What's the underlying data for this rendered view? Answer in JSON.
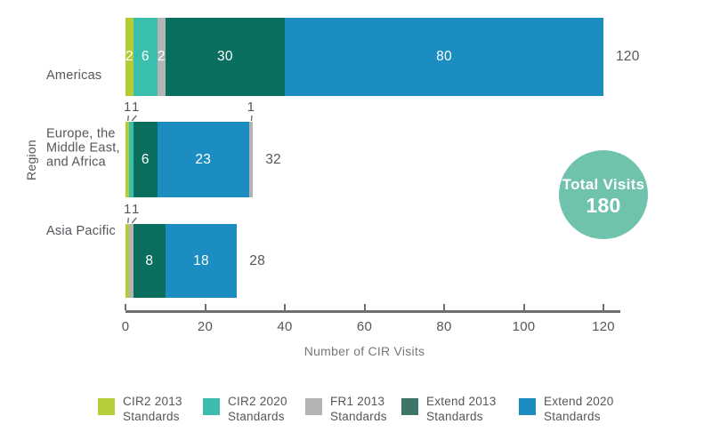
{
  "chart_data": {
    "type": "bar",
    "orientation": "horizontal-stacked",
    "title": "",
    "xlabel": "Number of CIR Visits",
    "ylabel": "Region",
    "xlim": [
      0,
      120
    ],
    "xticks": [
      0,
      20,
      40,
      60,
      80,
      100,
      120
    ],
    "grid": false,
    "legend_position": "bottom",
    "categories": [
      "Americas",
      "Europe, the Middle East, and Africa",
      "Asia Pacific"
    ],
    "totals": [
      120,
      32,
      28
    ],
    "series": [
      {
        "name": "CIR2 2013 Standards",
        "color": "#B2CC35",
        "values": [
          2,
          1,
          1
        ]
      },
      {
        "name": "CIR2 2020 Standards",
        "color": "#39BFAC",
        "values": [
          6,
          1,
          0
        ]
      },
      {
        "name": "FR1 2013 Standards",
        "color": "#B3B3B3",
        "values": [
          2,
          1,
          1
        ]
      },
      {
        "name": "Extend 2013 Standards",
        "color": "#0A6E5F",
        "values": [
          30,
          6,
          8
        ]
      },
      {
        "name": "Extend 2020 Standards",
        "color": "#1C8DC1",
        "values": [
          80,
          23,
          18
        ]
      }
    ],
    "rows": [
      {
        "region_lines": [
          "Americas"
        ],
        "total": 120,
        "segments": [
          {
            "series": "CIR2 2013 Standards",
            "value": 2,
            "color": "#B2CC35"
          },
          {
            "series": "CIR2 2020 Standards",
            "value": 6,
            "color": "#39BFAC"
          },
          {
            "series": "FR1 2013 Standards",
            "value": 2,
            "color": "#B3B3B3"
          },
          {
            "series": "Extend 2013 Standards",
            "value": 30,
            "color": "#0A6E5F"
          },
          {
            "series": "Extend 2020 Standards",
            "value": 80,
            "color": "#1C8DC1"
          }
        ]
      },
      {
        "region_lines": [
          "Europe, the",
          "Middle East,",
          "and Africa"
        ],
        "total": 32,
        "segments": [
          {
            "series": "CIR2 2013 Standards",
            "value": 1,
            "color": "#B2CC35"
          },
          {
            "series": "CIR2 2020 Standards",
            "value": 1,
            "color": "#39BFAC"
          },
          {
            "series": "Extend 2013 Standards",
            "value": 6,
            "color": "#0A6E5F"
          },
          {
            "series": "Extend 2020 Standards",
            "value": 23,
            "color": "#1C8DC1"
          },
          {
            "series": "FR1 2013 Standards",
            "value": 1,
            "color": "#B3B3B3"
          }
        ]
      },
      {
        "region_lines": [
          "Asia Pacific"
        ],
        "total": 28,
        "segments": [
          {
            "series": "CIR2 2013 Standards",
            "value": 1,
            "color": "#B2CC35"
          },
          {
            "series": "FR1 2013 Standards",
            "value": 1,
            "color": "#B3B3B3"
          },
          {
            "series": "Extend 2013 Standards",
            "value": 8,
            "color": "#0A6E5F"
          },
          {
            "series": "Extend 2020 Standards",
            "value": 18,
            "color": "#1C8DC1"
          }
        ]
      }
    ],
    "annotation": {
      "label": "Total Visits",
      "value": "180",
      "color": "#6FC3AD"
    }
  },
  "legend": {
    "items": [
      {
        "lines": [
          "CIR2 2013",
          "Standards"
        ],
        "color": "#B5CE3A"
      },
      {
        "lines": [
          "CIR2 2020",
          "Standards"
        ],
        "color": "#3CBCAB"
      },
      {
        "lines": [
          "FR1 2013",
          "Standards"
        ],
        "color": "#B3B3B3"
      },
      {
        "lines": [
          "Extend 2013",
          "Standards"
        ],
        "color": "#3F7468"
      },
      {
        "lines": [
          "Extend 2020",
          "Standards"
        ],
        "color": "#1C8DC1"
      }
    ]
  }
}
